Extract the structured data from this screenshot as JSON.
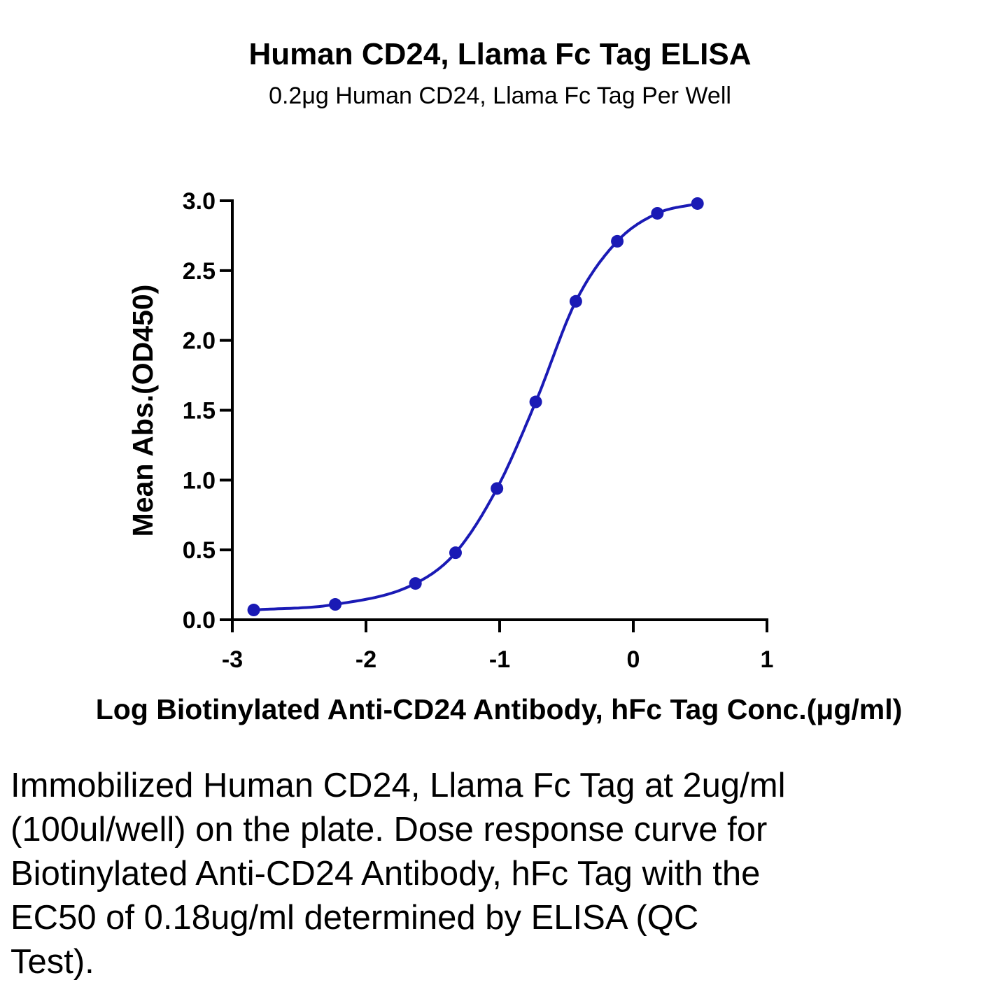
{
  "caption": "Immobilized Human CD24, Llama Fc Tag at 2ug/ml (100ul/well) on the plate. Dose response curve for Biotinylated Anti-CD24 Antibody, hFc Tag with the EC50 of 0.18ug/ml determined by ELISA (QC Test).",
  "chart_data": {
    "type": "scatter",
    "title": "Human CD24, Llama Fc Tag ELISA",
    "subtitle": "0.2μg Human CD24, Llama Fc Tag Per Well",
    "xlabel": "Log Biotinylated Anti-CD24 Antibody, hFc Tag Conc.(μg/ml)",
    "ylabel": "Mean Abs.(OD450)",
    "xlim": [
      -3,
      1
    ],
    "ylim": [
      0,
      3.0
    ],
    "x_ticks": [
      -3,
      -2,
      -1,
      0,
      1
    ],
    "x_tick_labels": [
      "-3",
      "-2",
      "-1",
      "0",
      "1"
    ],
    "y_ticks": [
      0,
      0.5,
      1.0,
      1.5,
      2.0,
      2.5,
      3.0
    ],
    "y_tick_labels": [
      "0.0",
      "0.5",
      "1.0",
      "1.5",
      "2.0",
      "2.5",
      "3.0"
    ],
    "grid": false,
    "legend": "none",
    "color": "#1a1ab5",
    "series": [
      {
        "x": [
          -2.84,
          -2.23,
          -1.63,
          -1.33,
          -1.02,
          -0.73,
          -0.43,
          -0.12,
          0.18,
          0.48
        ],
        "y": [
          0.07,
          0.11,
          0.26,
          0.48,
          0.94,
          1.56,
          2.28,
          2.71,
          2.91,
          2.98
        ]
      }
    ],
    "fit_curve": "sigmoidal four-parameter logistic through points"
  }
}
